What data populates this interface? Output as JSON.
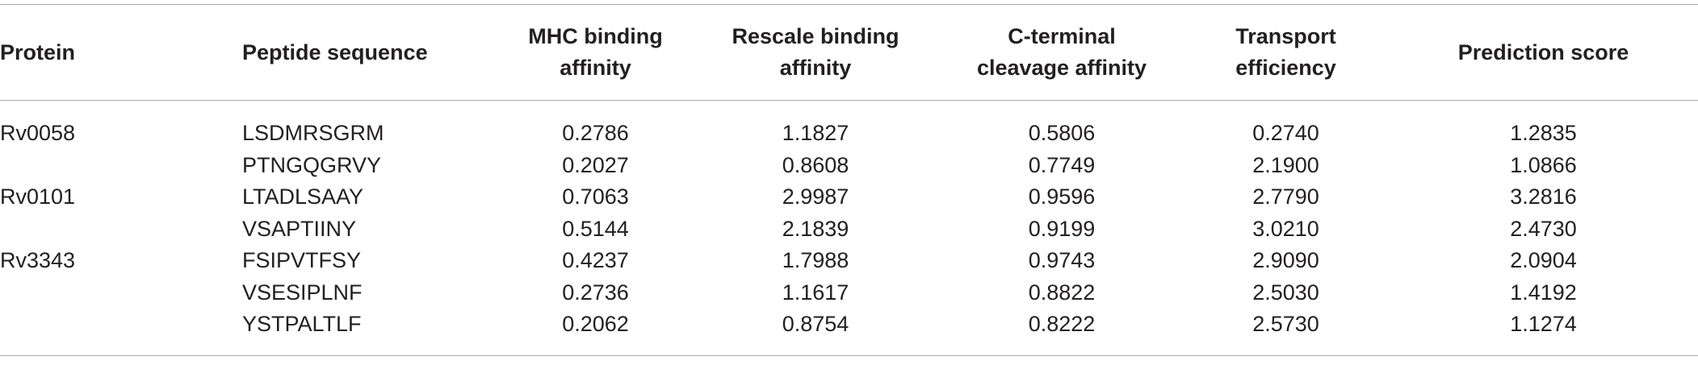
{
  "table": {
    "headers": [
      [
        "Protein"
      ],
      [
        "Peptide sequence"
      ],
      [
        "MHC binding",
        "affinity"
      ],
      [
        "Rescale binding",
        "affinity"
      ],
      [
        "C-terminal",
        "cleavage affinity"
      ],
      [
        "Transport",
        "efficiency"
      ],
      [
        "Prediction score"
      ]
    ],
    "rows": [
      [
        "Rv0058",
        "LSDMRSGRM",
        "0.2786",
        "1.1827",
        "0.5806",
        "0.2740",
        "1.2835"
      ],
      [
        "",
        "PTNGQGRVY",
        "0.2027",
        "0.8608",
        "0.7749",
        "2.1900",
        "1.0866"
      ],
      [
        "Rv0101",
        "LTADLSAAY",
        "0.7063",
        "2.9987",
        "0.9596",
        "2.7790",
        "3.2816"
      ],
      [
        "",
        "VSAPTIINY",
        "0.5144",
        "2.1839",
        "0.9199",
        "3.0210",
        "2.4730"
      ],
      [
        "Rv3343",
        "FSIPVTFSY",
        "0.4237",
        "1.7988",
        "0.9743",
        "2.9090",
        "2.0904"
      ],
      [
        "",
        "VSESIPLNF",
        "0.2736",
        "1.1617",
        "0.8822",
        "2.5030",
        "1.4192"
      ],
      [
        "",
        "YSTPALTLF",
        "0.2062",
        "0.8754",
        "0.8222",
        "2.5730",
        "1.1274"
      ]
    ]
  }
}
